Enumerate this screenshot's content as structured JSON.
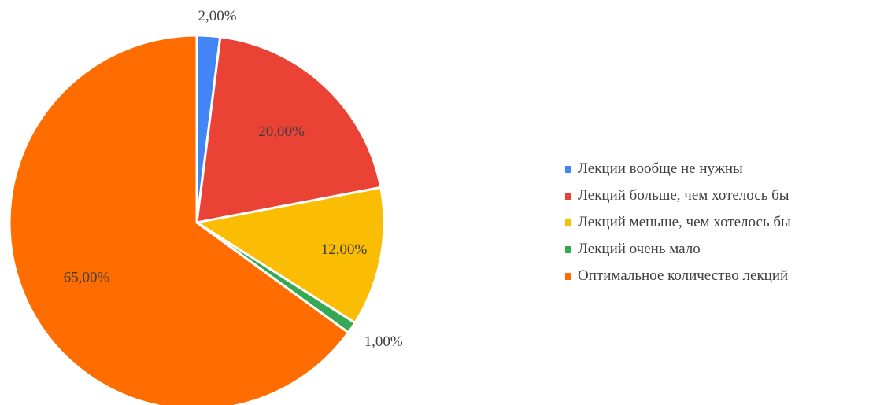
{
  "chart_data": {
    "type": "pie",
    "slices": [
      {
        "name": "Лекции вообще не нужны",
        "value": 2,
        "label": "2,00%",
        "color": "#4285f4"
      },
      {
        "name": "Лекций больше, чем хотелось бы",
        "value": 20,
        "label": "20,00%",
        "color": "#ea4335"
      },
      {
        "name": "Лекций меньше, чем хотелось бы",
        "value": 12,
        "label": "12,00%",
        "color": "#fbbc04"
      },
      {
        "name": "Лекций очень мало",
        "value": 1,
        "label": "1,00%",
        "color": "#34a853"
      },
      {
        "name": "Оптимальное количество лекций",
        "value": 65,
        "label": "65,00%",
        "color": "#ff6d01"
      }
    ],
    "legend_position": "right"
  }
}
